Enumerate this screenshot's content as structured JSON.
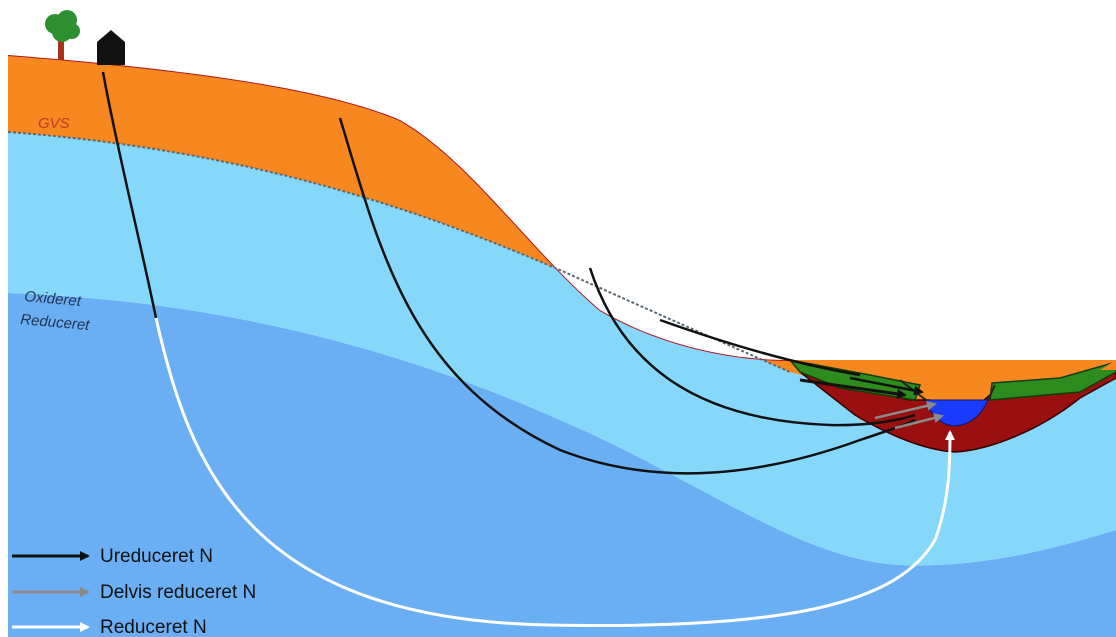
{
  "labels": {
    "gvs": "GVS",
    "oxidized": "Oxideret",
    "reduced": "Reduceret"
  },
  "legend": [
    {
      "text": "Ureduceret N",
      "color": "#111111"
    },
    {
      "text": "Delvis reduceret N",
      "color": "#8a8a8a"
    },
    {
      "text": "Reduceret N",
      "color": "#ffffff"
    }
  ],
  "icons": {
    "tree": "tree-icon",
    "house": "house-icon"
  },
  "colors": {
    "topsoil": "#f7871f",
    "oxidized_zone": "#86d8fb",
    "reduced_zone": "#6aaef4",
    "riparian_sediment": "#9a0f0f",
    "riparian_vegetation": "#2e8b1e",
    "stream": "#1a3cff",
    "unreduced_arrow": "#111111",
    "partly_reduced_arrow": "#8a8a8a",
    "reduced_arrow": "#ffffff"
  }
}
